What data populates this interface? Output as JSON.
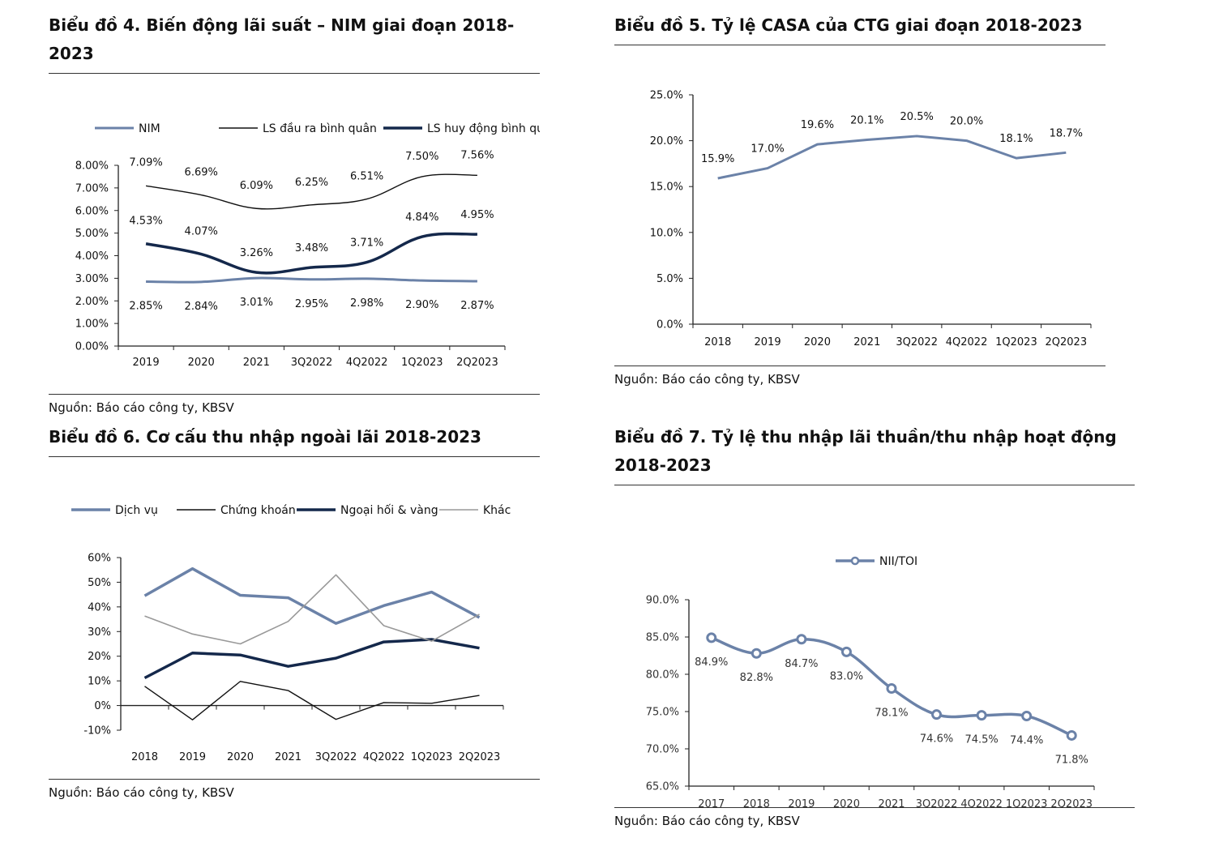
{
  "charts": [
    {
      "title": "Biểu đồ 4. Biến động lãi suất – NIM giai đoạn 2018-2023",
      "source": "Nguồn: Báo cáo công ty, KBSV",
      "type": "line",
      "categories": [
        "2019",
        "2020",
        "2021",
        "3Q2022",
        "4Q2022",
        "1Q2023",
        "2Q2023"
      ],
      "ylim": [
        0,
        8
      ],
      "yticks": [
        "0.00%",
        "1.00%",
        "2.00%",
        "3.00%",
        "4.00%",
        "5.00%",
        "6.00%",
        "7.00%",
        "8.00%"
      ],
      "series": [
        {
          "name": "NIM",
          "color": "#6b82a8",
          "values": [
            2.85,
            2.84,
            3.01,
            2.95,
            2.98,
            2.9,
            2.87
          ],
          "labels": [
            "2.85%",
            "2.84%",
            "3.01%",
            "2.95%",
            "2.98%",
            "2.90%",
            "2.87%"
          ]
        },
        {
          "name": "LS đầu ra bình quân",
          "color": "#111111",
          "values": [
            7.09,
            6.69,
            6.09,
            6.25,
            6.51,
            7.5,
            7.56
          ],
          "labels": [
            "7.09%",
            "6.69%",
            "6.09%",
            "6.25%",
            "6.51%",
            "7.50%",
            "7.56%"
          ]
        },
        {
          "name": "LS huy động bình quân",
          "color": "#14284b",
          "values": [
            4.53,
            4.07,
            3.26,
            3.48,
            3.71,
            4.84,
            4.95
          ],
          "labels": [
            "4.53%",
            "4.07%",
            "3.26%",
            "3.48%",
            "3.71%",
            "4.84%",
            "4.95%"
          ]
        }
      ]
    },
    {
      "title": "Biểu đồ 5. Tỷ lệ CASA của CTG giai đoạn 2018-2023",
      "source": "Nguồn: Báo cáo công ty, KBSV",
      "type": "line",
      "categories": [
        "2018",
        "2019",
        "2020",
        "2021",
        "3Q2022",
        "4Q2022",
        "1Q2023",
        "2Q2023"
      ],
      "ylim": [
        0,
        25
      ],
      "yticks": [
        "0.0%",
        "5.0%",
        "10.0%",
        "15.0%",
        "20.0%",
        "25.0%"
      ],
      "series": [
        {
          "name": "",
          "color": "#6b82a8",
          "values": [
            15.9,
            17.0,
            19.6,
            20.1,
            20.5,
            20.0,
            18.1,
            18.7
          ],
          "labels": [
            "15.9%",
            "17.0%",
            "19.6%",
            "20.1%",
            "20.5%",
            "20.0%",
            "18.1%",
            "18.7%"
          ]
        }
      ]
    },
    {
      "title": "Biểu đồ 6. Cơ cấu thu nhập ngoài lãi 2018-2023",
      "source": "Nguồn: Báo cáo công ty, KBSV",
      "type": "line",
      "categories": [
        "2018",
        "2019",
        "2020",
        "2021",
        "3Q2022",
        "4Q2022",
        "1Q2023",
        "2Q2023"
      ],
      "ylim": [
        -10,
        60
      ],
      "yticks": [
        "-10%",
        "0%",
        "10%",
        "20%",
        "30%",
        "40%",
        "50%",
        "60%"
      ],
      "series": [
        {
          "name": "Dịch vụ",
          "color": "#6b82a8",
          "values": [
            44.5,
            55.5,
            44.7,
            43.7,
            33.3,
            40.5,
            46.0,
            35.7
          ]
        },
        {
          "name": "Chứng khoán",
          "color": "#111111",
          "values": [
            7.8,
            -5.8,
            9.8,
            6.1,
            -5.6,
            1.2,
            0.9,
            4.1
          ]
        },
        {
          "name": "Ngoại hối & vàng",
          "color": "#14284b",
          "values": [
            11.2,
            21.3,
            20.5,
            15.9,
            19.2,
            25.8,
            26.8,
            23.3
          ]
        },
        {
          "name": "Khác",
          "color": "#999999",
          "values": [
            36.3,
            29.0,
            25.0,
            34.1,
            53.0,
            32.4,
            26.1,
            37.0
          ]
        }
      ]
    },
    {
      "title": "Biểu đồ 7. Tỷ lệ thu nhập lãi thuần/thu nhập hoạt động 2018-2023",
      "source": "Nguồn: Báo cáo công ty, KBSV",
      "type": "line",
      "categories": [
        "2017",
        "2018",
        "2019",
        "2020",
        "2021",
        "3Q2022",
        "4Q2022",
        "1Q2023",
        "2Q2023"
      ],
      "ylim": [
        65,
        90
      ],
      "yticks": [
        "65.0%",
        "70.0%",
        "75.0%",
        "80.0%",
        "85.0%",
        "90.0%"
      ],
      "series": [
        {
          "name": "NII/TOI",
          "color": "#6b82a8",
          "values": [
            84.9,
            82.8,
            84.7,
            83.0,
            78.1,
            74.6,
            74.5,
            74.4,
            71.8
          ],
          "labels": [
            "84.9%",
            "82.8%",
            "84.7%",
            "83.0%",
            "78.1%",
            "74.6%",
            "74.5%",
            "74.4%",
            "71.8%"
          ]
        }
      ]
    }
  ]
}
